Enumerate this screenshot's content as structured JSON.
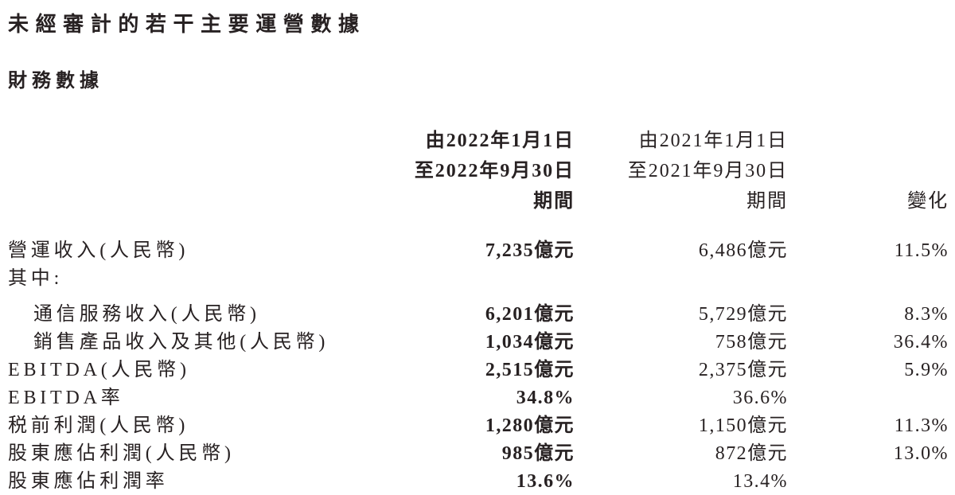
{
  "page": {
    "title": "未經審計的若干主要運營數據",
    "subtitle": "財務數據"
  },
  "colors": {
    "text": "#272122",
    "background": "#ffffff"
  },
  "table": {
    "header": {
      "col_2022": {
        "line1": "由2022年1月1日",
        "line2": "至2022年9月30日",
        "line3": "期間"
      },
      "col_2021": {
        "line1": "由2021年1月1日",
        "line2": "至2021年9月30日",
        "line3": "期間"
      },
      "col_change": "變化"
    },
    "rows": [
      {
        "label": "營運收入(人民幣)",
        "v2022": "7,235億元",
        "v2021": "6,486億元",
        "change": "11.5%"
      },
      {
        "label": "其中:",
        "v2022": "",
        "v2021": "",
        "change": ""
      },
      {
        "label": "通信服務收入(人民幣)",
        "v2022": "6,201億元",
        "v2021": "5,729億元",
        "change": "8.3%"
      },
      {
        "label": "銷售產品收入及其他(人民幣)",
        "v2022": "1,034億元",
        "v2021": "758億元",
        "change": "36.4%"
      },
      {
        "label": "EBITDA(人民幣)",
        "v2022": "2,515億元",
        "v2021": "2,375億元",
        "change": "5.9%"
      },
      {
        "label": "EBITDA率",
        "v2022": "34.8%",
        "v2021": "36.6%",
        "change": ""
      },
      {
        "label": "税前利潤(人民幣)",
        "v2022": "1,280億元",
        "v2021": "1,150億元",
        "change": "11.3%"
      },
      {
        "label": "股東應佔利潤(人民幣)",
        "v2022": "985億元",
        "v2021": "872億元",
        "change": "13.0%"
      },
      {
        "label": "股東應佔利潤率",
        "v2022": "13.6%",
        "v2021": "13.4%",
        "change": ""
      }
    ]
  }
}
